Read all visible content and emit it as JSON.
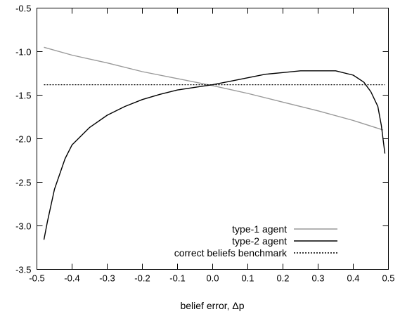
{
  "chart_data": {
    "type": "line",
    "title": "",
    "xlabel": "belief error, Δp",
    "ylabel": "",
    "xlim": [
      -0.5,
      0.5
    ],
    "ylim": [
      -3.5,
      -0.5
    ],
    "xticks": [
      "-0.5",
      "-0.4",
      "-0.3",
      "-0.2",
      "-0.1",
      "0.0",
      "0.1",
      "0.2",
      "0.3",
      "0.4",
      "0.5"
    ],
    "yticks": [
      "-0.5",
      "-1.0",
      "-1.5",
      "-2.0",
      "-2.5",
      "-3.0",
      "-3.5"
    ],
    "grid": false,
    "legend_position": "bottom-right",
    "series": [
      {
        "name": "type-1 agent",
        "color": "#999999",
        "style": "solid",
        "x": [
          -0.48,
          -0.4,
          -0.3,
          -0.2,
          -0.1,
          0.0,
          0.1,
          0.2,
          0.3,
          0.4,
          0.485
        ],
        "y": [
          -0.95,
          -1.04,
          -1.13,
          -1.23,
          -1.31,
          -1.39,
          -1.48,
          -1.58,
          -1.68,
          -1.79,
          -1.9
        ]
      },
      {
        "name": "type-2 agent",
        "color": "#000000",
        "style": "solid",
        "x": [
          -0.48,
          -0.47,
          -0.45,
          -0.42,
          -0.4,
          -0.35,
          -0.3,
          -0.25,
          -0.2,
          -0.15,
          -0.1,
          -0.05,
          0.0,
          0.05,
          0.1,
          0.15,
          0.2,
          0.25,
          0.3,
          0.35,
          0.4,
          0.43,
          0.45,
          0.47,
          0.48,
          0.49
        ],
        "y": [
          -3.16,
          -2.95,
          -2.58,
          -2.23,
          -2.07,
          -1.87,
          -1.73,
          -1.63,
          -1.55,
          -1.49,
          -1.44,
          -1.41,
          -1.38,
          -1.34,
          -1.3,
          -1.26,
          -1.24,
          -1.22,
          -1.22,
          -1.22,
          -1.27,
          -1.35,
          -1.46,
          -1.63,
          -1.85,
          -2.17
        ]
      },
      {
        "name": "correct beliefs benchmark",
        "color": "#000000",
        "style": "dotted",
        "x": [
          -0.48,
          0.49
        ],
        "y": [
          -1.38,
          -1.38
        ]
      }
    ]
  }
}
